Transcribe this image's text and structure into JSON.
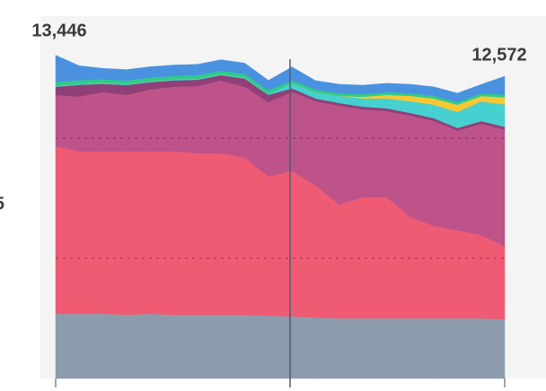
{
  "chart_data": {
    "type": "stacked-area",
    "categories": [
      null,
      null,
      null,
      null,
      null,
      null,
      null,
      null,
      null,
      null,
      null,
      null,
      null,
      null,
      null,
      null,
      null,
      null,
      null,
      null
    ],
    "ylim": [
      0,
      15000
    ],
    "yticks": [
      5000,
      10000
    ],
    "grid": true,
    "annotations": [
      {
        "text": "13,446"
      },
      {
        "text": "12,572"
      },
      {
        "text": "5"
      }
    ],
    "series": [
      {
        "name": "gray",
        "color": "#8c9cad",
        "values": [
          2690,
          2690,
          2690,
          2650,
          2690,
          2650,
          2650,
          2650,
          2650,
          2610,
          2580,
          2540,
          2500,
          2500,
          2500,
          2500,
          2500,
          2500,
          2500,
          2470
        ]
      },
      {
        "name": "red",
        "color": "#ef5b73",
        "values": [
          6980,
          6760,
          6760,
          6800,
          6760,
          6800,
          6720,
          6720,
          6540,
          5790,
          6050,
          5490,
          4740,
          5040,
          5040,
          4220,
          3850,
          3660,
          3470,
          3030
        ]
      },
      {
        "name": "purple",
        "color": "#bd5389",
        "values": [
          2130,
          2280,
          2470,
          2350,
          2580,
          2690,
          2800,
          3030,
          2950,
          3100,
          3290,
          3510,
          4110,
          3660,
          3590,
          4220,
          4370,
          4150,
          4630,
          4860
        ]
      },
      {
        "name": "dark-purple",
        "color": "#913f78",
        "values": [
          340,
          490,
          340,
          410,
          300,
          260,
          260,
          220,
          340,
          300,
          150,
          110,
          110,
          110,
          110,
          110,
          110,
          110,
          110,
          110
        ]
      },
      {
        "name": "teal",
        "color": "#46d0d0",
        "values": [
          40,
          40,
          40,
          40,
          40,
          40,
          40,
          40,
          40,
          40,
          220,
          260,
          300,
          340,
          410,
          490,
          560,
          670,
          820,
          930
        ]
      },
      {
        "name": "yellow",
        "color": "#f7c833",
        "values": [
          0,
          0,
          0,
          0,
          0,
          0,
          0,
          0,
          0,
          0,
          0,
          0,
          0,
          70,
          150,
          220,
          260,
          300,
          220,
          300
        ]
      },
      {
        "name": "green",
        "color": "#2dcc8a",
        "values": [
          150,
          150,
          150,
          150,
          150,
          150,
          150,
          150,
          150,
          150,
          110,
          110,
          110,
          110,
          110,
          110,
          110,
          110,
          110,
          110
        ]
      },
      {
        "name": "blue",
        "color": "#4a92e0",
        "values": [
          1116,
          600,
          450,
          450,
          450,
          450,
          450,
          450,
          450,
          410,
          560,
          370,
          370,
          370,
          370,
          370,
          370,
          370,
          370,
          762
        ]
      }
    ]
  }
}
